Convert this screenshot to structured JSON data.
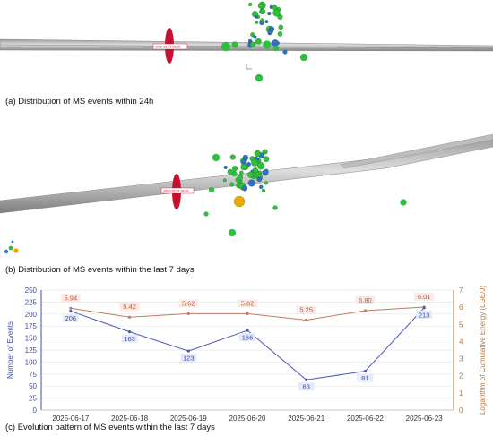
{
  "captions": {
    "a": "(a) Distribution of MS events within 24h",
    "b": "(b) Distribution of MS events within the last 7 days",
    "c": "(c) Evolution pattern of MS events within the last 7 days"
  },
  "panel_a": {
    "timestamp_label": "2025-06-24 08:28"
  },
  "panel_b": {
    "timestamp_label": "2025-06-24 08:28"
  },
  "colors": {
    "events_line": "#4a56b3",
    "energy_line": "#c07a6a",
    "events_axis": "#3b4fb0",
    "energy_axis": "#b07a4a",
    "marker_red": "#c8102e",
    "sphere_green": "#2fbf3a",
    "sphere_blue": "#2e6fd0",
    "sphere_orange": "#f0a800"
  },
  "chart_data": {
    "type": "line",
    "categories": [
      "2025-06-17",
      "2025-06-18",
      "2025-06-19",
      "2025-06-20",
      "2025-06-21",
      "2025-06-22",
      "2025-06-23"
    ],
    "series": [
      {
        "axis": "left",
        "values": [
          206,
          163,
          123,
          166,
          63,
          81,
          213
        ],
        "labels": [
          "206",
          "163",
          "123",
          "166",
          "63",
          "81",
          "213"
        ]
      },
      {
        "axis": "right",
        "values": [
          5.94,
          5.42,
          5.62,
          5.62,
          5.25,
          5.8,
          6.01
        ],
        "labels": [
          "5.94",
          "5.42",
          "5.62",
          "5.62",
          "5.25",
          "5.80",
          "6.01"
        ]
      }
    ],
    "ylabel": "Number of Events",
    "y2label": "Logarithm of Cumulative Energy (LGE/J)",
    "ylim": [
      0,
      250
    ],
    "yticks": [
      "0",
      "25",
      "50",
      "75",
      "100",
      "125",
      "150",
      "175",
      "200",
      "225",
      "250"
    ],
    "y2lim": [
      0,
      7
    ],
    "y2ticks": [
      "0",
      "1",
      "2",
      "3",
      "4",
      "5",
      "6",
      "7"
    ],
    "grid": true
  }
}
